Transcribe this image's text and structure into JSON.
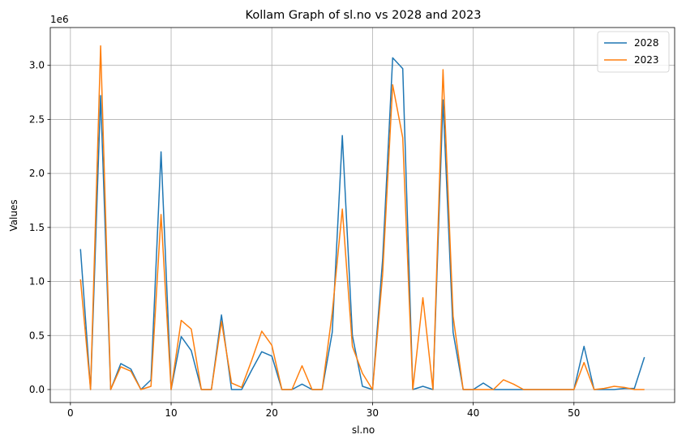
{
  "chart_data": {
    "type": "line",
    "title": "Kollam Graph of sl.no vs 2028 and 2023",
    "xlabel": "sl.no",
    "ylabel": "Values",
    "y_offset_label": "1e6",
    "xlim": [
      -2,
      60
    ],
    "ylim": [
      -0.12,
      3.35
    ],
    "y_scale": 1000000,
    "x_ticks": [
      0,
      10,
      20,
      30,
      40,
      50
    ],
    "x_tick_labels": [
      "0",
      "10",
      "20",
      "30",
      "40",
      "50"
    ],
    "y_ticks": [
      0,
      0.5,
      1.0,
      1.5,
      2.0,
      2.5,
      3.0
    ],
    "y_tick_labels": [
      "0.0",
      "0.5",
      "1.0",
      "1.5",
      "2.0",
      "2.5",
      "3.0"
    ],
    "grid": true,
    "legend_position": "top-right",
    "x": [
      1,
      2,
      3,
      4,
      5,
      6,
      7,
      8,
      9,
      10,
      11,
      12,
      13,
      14,
      15,
      16,
      17,
      18,
      19,
      20,
      21,
      22,
      23,
      24,
      25,
      26,
      27,
      28,
      29,
      30,
      31,
      32,
      33,
      34,
      35,
      36,
      37,
      38,
      39,
      40,
      41,
      42,
      43,
      44,
      45,
      46,
      47,
      48,
      49,
      50,
      51,
      52,
      53,
      54,
      55,
      56,
      57
    ],
    "series": [
      {
        "name": "2028",
        "color": "#1f77b4",
        "values": [
          1.3,
          0.0,
          2.72,
          0.0,
          0.24,
          0.19,
          0.0,
          0.09,
          2.2,
          0.0,
          0.49,
          0.36,
          0.0,
          0.0,
          0.69,
          0.0,
          0.0,
          0.18,
          0.35,
          0.31,
          0.0,
          0.0,
          0.05,
          0.0,
          0.0,
          0.53,
          2.35,
          0.5,
          0.03,
          0.0,
          1.2,
          3.07,
          2.97,
          0.0,
          0.03,
          0.0,
          2.68,
          0.53,
          0.0,
          0.0,
          0.06,
          0.0,
          0.0,
          0.0,
          0.0,
          0.0,
          0.0,
          0.0,
          0.0,
          0.0,
          0.4,
          0.0,
          0.0,
          0.0,
          0.01,
          0.01,
          0.3
        ]
      },
      {
        "name": "2023",
        "color": "#ff7f0e",
        "values": [
          1.02,
          0.0,
          3.18,
          0.0,
          0.21,
          0.17,
          0.0,
          0.03,
          1.62,
          0.0,
          0.64,
          0.56,
          0.0,
          0.0,
          0.63,
          0.06,
          0.02,
          0.27,
          0.54,
          0.41,
          0.0,
          0.0,
          0.22,
          0.0,
          0.0,
          0.71,
          1.67,
          0.4,
          0.15,
          0.0,
          1.06,
          2.82,
          2.33,
          0.0,
          0.85,
          0.0,
          2.96,
          0.68,
          0.0,
          0.0,
          0.0,
          0.0,
          0.09,
          0.05,
          0.0,
          0.0,
          0.0,
          0.0,
          0.0,
          0.0,
          0.25,
          0.0,
          0.01,
          0.03,
          0.02,
          0.0,
          0.0
        ]
      }
    ]
  }
}
